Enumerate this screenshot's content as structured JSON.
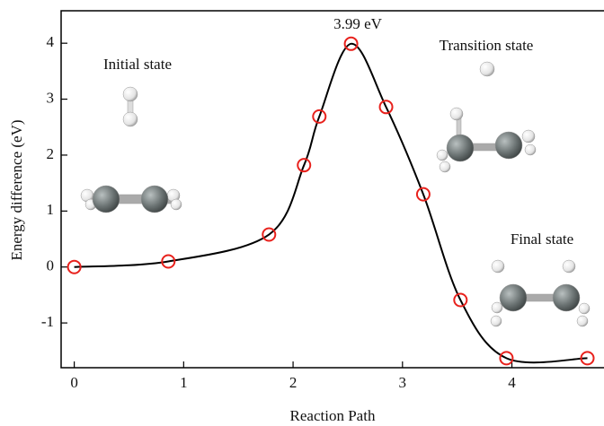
{
  "chart_data": {
    "type": "line",
    "x_label": "Reaction Path",
    "y_label": "Energy difference (eV)",
    "x": [
      0,
      0.86,
      1.78,
      2.1,
      2.24,
      2.53,
      2.85,
      3.19,
      3.53,
      3.95,
      4.69
    ],
    "values": [
      0,
      0.1,
      0.58,
      1.82,
      2.69,
      3.99,
      2.86,
      1.3,
      -0.59,
      -1.63,
      -1.63
    ],
    "line_color": "#000000",
    "marker_color": "#e8211c",
    "xlim": [
      -0.12,
      4.85
    ],
    "ylim": [
      -1.8,
      4.58
    ],
    "xticks": [
      0,
      1,
      2,
      3,
      4
    ],
    "yticks": [
      -1,
      0,
      1,
      2,
      3,
      4
    ],
    "annotations": [
      "3.99 eV",
      "Initial state",
      "Transition state",
      "Final state"
    ]
  }
}
